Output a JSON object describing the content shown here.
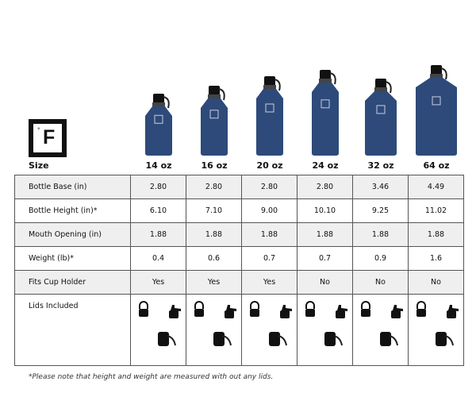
{
  "brand": {
    "logo_letter": "F",
    "logo_degree": "°"
  },
  "header": {
    "size_label": "Size",
    "sizes": [
      "14 oz",
      "16 oz",
      "20 oz",
      "24 oz",
      "32 oz",
      "64 oz"
    ]
  },
  "bottle_color": "#2d4a7a",
  "rows": [
    {
      "label": "Bottle Base (in)",
      "values": [
        "2.80",
        "2.80",
        "2.80",
        "2.80",
        "3.46",
        "4.49"
      ]
    },
    {
      "label": "Bottle Height (in)*",
      "values": [
        "6.10",
        "7.10",
        "9.00",
        "10.10",
        "9.25",
        "11.02"
      ]
    },
    {
      "label": "Mouth Opening (in)",
      "values": [
        "1.88",
        "1.88",
        "1.88",
        "1.88",
        "1.88",
        "1.88"
      ]
    },
    {
      "label": "Weight (lb)*",
      "values": [
        "0.4",
        "0.6",
        "0.7",
        "0.7",
        "0.9",
        "1.6"
      ]
    },
    {
      "label": "Fits Cup Holder",
      "values": [
        "Yes",
        "Yes",
        "Yes",
        "No",
        "No",
        "No"
      ]
    }
  ],
  "lids": {
    "label": "Lids Included",
    "icons": [
      "handle-lid-icon",
      "spout-lid-icon",
      "chug-lid-icon"
    ]
  },
  "footnote": "*Please note that height and weight are measured with out any lids."
}
